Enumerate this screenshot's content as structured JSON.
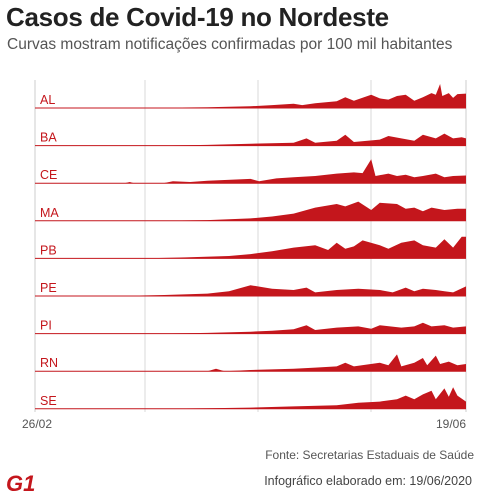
{
  "header": {
    "title": "Casos de Covid-19 no Nordeste",
    "subtitle": "Curvas mostram notificações confirmadas por 100 mil habitantes"
  },
  "footer": {
    "source": "Fonte: Secretarias Estaduais de Saúde",
    "credit": "Infográfico elaborado em: 19/06/2020",
    "logo_text": "G1"
  },
  "colors": {
    "fill": "#c4161c",
    "grid": "#cccccc",
    "label": "#c4161c",
    "baseline": "#c4161c"
  },
  "chart_data": {
    "type": "area",
    "title": "Casos de Covid-19 no Nordeste",
    "subtitle": "Curvas mostram notificações confirmadas por 100 mil habitantes",
    "x_start": "26/02",
    "x_end": "19/06",
    "xticks": [
      "26/02",
      "19/06"
    ],
    "unit": "notificações confirmadas por 100 mil habitantes",
    "grid": true,
    "series": [
      {
        "name": "AL",
        "profile": [
          [
            0,
            0
          ],
          [
            0.25,
            0
          ],
          [
            0.28,
            0.01
          ],
          [
            0.4,
            0.03
          ],
          [
            0.5,
            0.07
          ],
          [
            0.55,
            0.12
          ],
          [
            0.6,
            0.18
          ],
          [
            0.62,
            0.12
          ],
          [
            0.65,
            0.2
          ],
          [
            0.7,
            0.28
          ],
          [
            0.72,
            0.45
          ],
          [
            0.74,
            0.3
          ],
          [
            0.78,
            0.55
          ],
          [
            0.8,
            0.4
          ],
          [
            0.82,
            0.35
          ],
          [
            0.84,
            0.5
          ],
          [
            0.86,
            0.55
          ],
          [
            0.88,
            0.3
          ],
          [
            0.9,
            0.45
          ],
          [
            0.92,
            0.62
          ],
          [
            0.93,
            0.55
          ],
          [
            0.94,
            1.0
          ],
          [
            0.945,
            0.5
          ],
          [
            0.96,
            0.62
          ],
          [
            0.97,
            0.42
          ],
          [
            0.98,
            0.58
          ],
          [
            1.0,
            0.6
          ]
        ]
      },
      {
        "name": "BA",
        "profile": [
          [
            0,
            0
          ],
          [
            0.3,
            0
          ],
          [
            0.4,
            0.03
          ],
          [
            0.5,
            0.08
          ],
          [
            0.6,
            0.12
          ],
          [
            0.63,
            0.3
          ],
          [
            0.65,
            0.12
          ],
          [
            0.7,
            0.2
          ],
          [
            0.72,
            0.45
          ],
          [
            0.74,
            0.15
          ],
          [
            0.8,
            0.25
          ],
          [
            0.82,
            0.4
          ],
          [
            0.85,
            0.3
          ],
          [
            0.88,
            0.2
          ],
          [
            0.9,
            0.45
          ],
          [
            0.93,
            0.3
          ],
          [
            0.95,
            0.5
          ],
          [
            0.97,
            0.3
          ],
          [
            0.99,
            0.35
          ],
          [
            1.0,
            0.3
          ]
        ]
      },
      {
        "name": "CE",
        "profile": [
          [
            0,
            0
          ],
          [
            0.2,
            0
          ],
          [
            0.21,
            0.01
          ],
          [
            0.22,
            0.05
          ],
          [
            0.23,
            0.0
          ],
          [
            0.3,
            0.01
          ],
          [
            0.32,
            0.08
          ],
          [
            0.36,
            0.05
          ],
          [
            0.4,
            0.1
          ],
          [
            0.5,
            0.18
          ],
          [
            0.52,
            0.08
          ],
          [
            0.56,
            0.2
          ],
          [
            0.6,
            0.25
          ],
          [
            0.65,
            0.3
          ],
          [
            0.7,
            0.4
          ],
          [
            0.74,
            0.45
          ],
          [
            0.76,
            0.42
          ],
          [
            0.78,
            1.0
          ],
          [
            0.79,
            0.3
          ],
          [
            0.82,
            0.4
          ],
          [
            0.84,
            0.3
          ],
          [
            0.86,
            0.35
          ],
          [
            0.88,
            0.25
          ],
          [
            0.9,
            0.3
          ],
          [
            0.93,
            0.4
          ],
          [
            0.95,
            0.25
          ],
          [
            0.97,
            0.3
          ],
          [
            1.0,
            0.32
          ]
        ]
      },
      {
        "name": "MA",
        "profile": [
          [
            0,
            0
          ],
          [
            0.3,
            0
          ],
          [
            0.4,
            0.03
          ],
          [
            0.5,
            0.1
          ],
          [
            0.55,
            0.18
          ],
          [
            0.6,
            0.3
          ],
          [
            0.65,
            0.55
          ],
          [
            0.7,
            0.7
          ],
          [
            0.72,
            0.6
          ],
          [
            0.75,
            0.8
          ],
          [
            0.78,
            0.45
          ],
          [
            0.8,
            0.75
          ],
          [
            0.84,
            0.7
          ],
          [
            0.86,
            0.5
          ],
          [
            0.88,
            0.55
          ],
          [
            0.9,
            0.4
          ],
          [
            0.92,
            0.55
          ],
          [
            0.95,
            0.45
          ],
          [
            0.98,
            0.5
          ],
          [
            1.0,
            0.5
          ]
        ]
      },
      {
        "name": "PB",
        "profile": [
          [
            0,
            0
          ],
          [
            0.25,
            0
          ],
          [
            0.35,
            0.04
          ],
          [
            0.45,
            0.1
          ],
          [
            0.5,
            0.18
          ],
          [
            0.55,
            0.3
          ],
          [
            0.6,
            0.45
          ],
          [
            0.65,
            0.55
          ],
          [
            0.68,
            0.35
          ],
          [
            0.7,
            0.65
          ],
          [
            0.72,
            0.4
          ],
          [
            0.74,
            0.5
          ],
          [
            0.76,
            0.75
          ],
          [
            0.8,
            0.55
          ],
          [
            0.82,
            0.4
          ],
          [
            0.85,
            0.65
          ],
          [
            0.88,
            0.75
          ],
          [
            0.9,
            0.55
          ],
          [
            0.93,
            0.45
          ],
          [
            0.95,
            0.8
          ],
          [
            0.97,
            0.45
          ],
          [
            0.99,
            0.9
          ],
          [
            1.0,
            0.9
          ]
        ]
      },
      {
        "name": "PE",
        "profile": [
          [
            0,
            0
          ],
          [
            0.18,
            0
          ],
          [
            0.3,
            0.04
          ],
          [
            0.4,
            0.1
          ],
          [
            0.45,
            0.2
          ],
          [
            0.5,
            0.45
          ],
          [
            0.55,
            0.3
          ],
          [
            0.6,
            0.25
          ],
          [
            0.63,
            0.35
          ],
          [
            0.65,
            0.15
          ],
          [
            0.7,
            0.25
          ],
          [
            0.75,
            0.3
          ],
          [
            0.8,
            0.25
          ],
          [
            0.83,
            0.15
          ],
          [
            0.86,
            0.35
          ],
          [
            0.88,
            0.2
          ],
          [
            0.9,
            0.3
          ],
          [
            0.93,
            0.25
          ],
          [
            0.95,
            0.2
          ],
          [
            0.97,
            0.15
          ],
          [
            1.0,
            0.4
          ]
        ]
      },
      {
        "name": "PI",
        "profile": [
          [
            0,
            0
          ],
          [
            0.3,
            0
          ],
          [
            0.4,
            0.03
          ],
          [
            0.5,
            0.08
          ],
          [
            0.55,
            0.12
          ],
          [
            0.6,
            0.18
          ],
          [
            0.63,
            0.35
          ],
          [
            0.65,
            0.15
          ],
          [
            0.7,
            0.25
          ],
          [
            0.75,
            0.3
          ],
          [
            0.78,
            0.2
          ],
          [
            0.8,
            0.35
          ],
          [
            0.85,
            0.25
          ],
          [
            0.88,
            0.3
          ],
          [
            0.9,
            0.45
          ],
          [
            0.92,
            0.3
          ],
          [
            0.95,
            0.35
          ],
          [
            0.97,
            0.25
          ],
          [
            1.0,
            0.3
          ]
        ]
      },
      {
        "name": "RN",
        "profile": [
          [
            0,
            0
          ],
          [
            0.4,
            0
          ],
          [
            0.42,
            0.1
          ],
          [
            0.44,
            0.0
          ],
          [
            0.5,
            0.05
          ],
          [
            0.6,
            0.1
          ],
          [
            0.65,
            0.15
          ],
          [
            0.7,
            0.2
          ],
          [
            0.72,
            0.35
          ],
          [
            0.74,
            0.2
          ],
          [
            0.8,
            0.35
          ],
          [
            0.82,
            0.25
          ],
          [
            0.84,
            0.7
          ],
          [
            0.85,
            0.2
          ],
          [
            0.88,
            0.35
          ],
          [
            0.9,
            0.55
          ],
          [
            0.91,
            0.25
          ],
          [
            0.93,
            0.65
          ],
          [
            0.94,
            0.3
          ],
          [
            0.96,
            0.4
          ],
          [
            0.98,
            0.25
          ],
          [
            1.0,
            0.3
          ]
        ]
      },
      {
        "name": "SE",
        "profile": [
          [
            0,
            0
          ],
          [
            0.3,
            0
          ],
          [
            0.4,
            0.02
          ],
          [
            0.5,
            0.05
          ],
          [
            0.6,
            0.1
          ],
          [
            0.7,
            0.15
          ],
          [
            0.75,
            0.25
          ],
          [
            0.8,
            0.3
          ],
          [
            0.84,
            0.4
          ],
          [
            0.86,
            0.55
          ],
          [
            0.88,
            0.4
          ],
          [
            0.9,
            0.6
          ],
          [
            0.92,
            0.75
          ],
          [
            0.93,
            0.4
          ],
          [
            0.95,
            0.85
          ],
          [
            0.96,
            0.5
          ],
          [
            0.97,
            0.9
          ],
          [
            0.98,
            0.55
          ],
          [
            1.0,
            0.3
          ]
        ]
      }
    ]
  }
}
